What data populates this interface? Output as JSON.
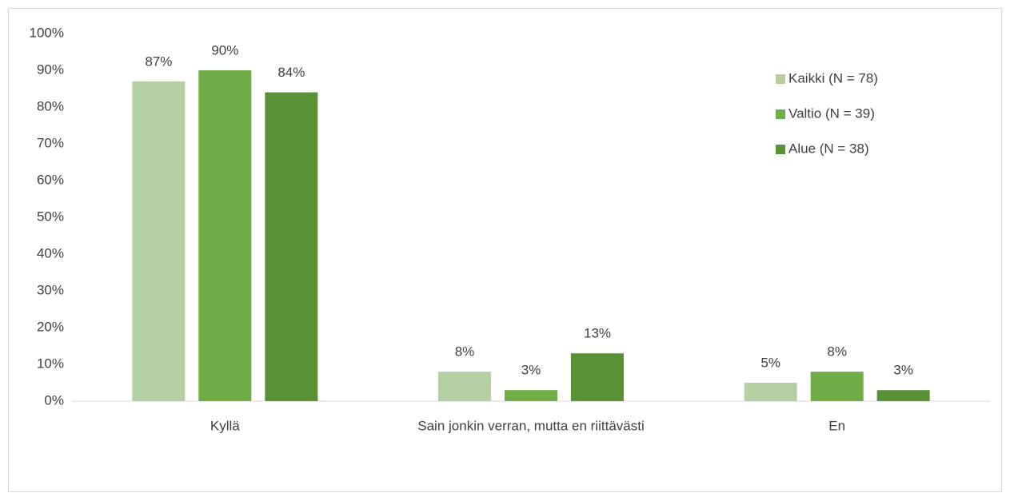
{
  "chart_data": {
    "type": "bar",
    "categories": [
      "Kyllä",
      "Sain jonkin verran, mutta en riittävästi",
      "En"
    ],
    "series": [
      {
        "name": "Kaikki (N = 78)",
        "color": "#b4cfa3",
        "values": [
          87,
          8,
          5
        ],
        "value_labels": [
          "87%",
          "8%",
          "5%"
        ]
      },
      {
        "name": "Valtio (N = 39)",
        "color": "#70ad47",
        "values": [
          90,
          3,
          8
        ],
        "value_labels": [
          "90%",
          "3%",
          "8%"
        ]
      },
      {
        "name": "Alue (N = 38)",
        "color": "#5a9036",
        "values": [
          84,
          13,
          3
        ],
        "value_labels": [
          "84%",
          "13%",
          "3%"
        ]
      }
    ],
    "ylim": [
      0,
      100
    ],
    "yticks": [
      {
        "value": 0,
        "label": "0%"
      },
      {
        "value": 10,
        "label": "10%"
      },
      {
        "value": 20,
        "label": "20%"
      },
      {
        "value": 30,
        "label": "30%"
      },
      {
        "value": 40,
        "label": "40%"
      },
      {
        "value": 50,
        "label": "50%"
      },
      {
        "value": 60,
        "label": "60%"
      },
      {
        "value": 70,
        "label": "70%"
      },
      {
        "value": 80,
        "label": "80%"
      },
      {
        "value": 90,
        "label": "90%"
      },
      {
        "value": 100,
        "label": "100%"
      }
    ],
    "grid": false,
    "legend": "upper right"
  }
}
